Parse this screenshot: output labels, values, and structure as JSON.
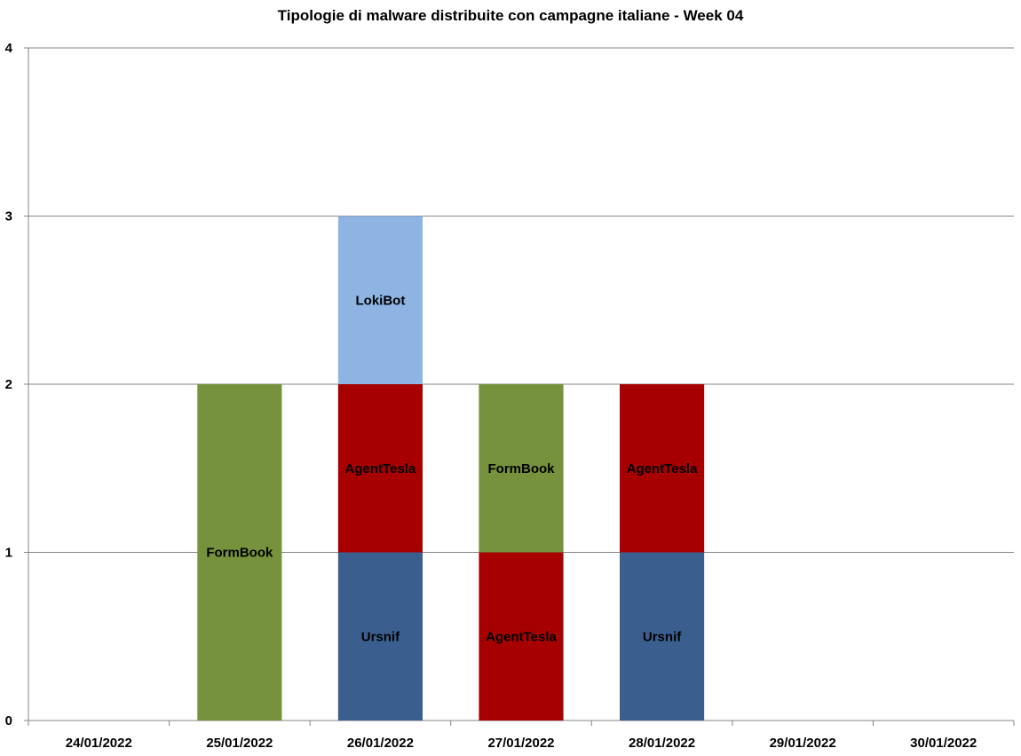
{
  "chart_data": {
    "type": "bar",
    "stacked": true,
    "title": "Tipologie di malware distribuite con campagne italiane - Week 04",
    "xlabel": "",
    "ylabel": "",
    "ylim": [
      0,
      4
    ],
    "yticks": [
      "0",
      "1",
      "2",
      "3",
      "4"
    ],
    "grid": true,
    "legend": "none",
    "categories": [
      "24/01/2022",
      "25/01/2022",
      "26/01/2022",
      "27/01/2022",
      "28/01/2022",
      "29/01/2022",
      "30/01/2022"
    ],
    "stacks": [
      [],
      [
        {
          "label": "FormBook",
          "value": 2,
          "color": "#76923c"
        }
      ],
      [
        {
          "label": "Ursnif",
          "value": 1,
          "color": "#3a5f8f"
        },
        {
          "label": "AgentTesla",
          "value": 1,
          "color": "#a60000"
        },
        {
          "label": "LokiBot",
          "value": 1,
          "color": "#8eb4e3"
        }
      ],
      [
        {
          "label": "AgentTesla",
          "value": 1,
          "color": "#a60000"
        },
        {
          "label": "FormBook",
          "value": 1,
          "color": "#76923c"
        }
      ],
      [
        {
          "label": "Ursnif",
          "value": 1,
          "color": "#3a5f8f"
        },
        {
          "label": "AgentTesla",
          "value": 1,
          "color": "#a60000"
        }
      ],
      [],
      []
    ]
  }
}
